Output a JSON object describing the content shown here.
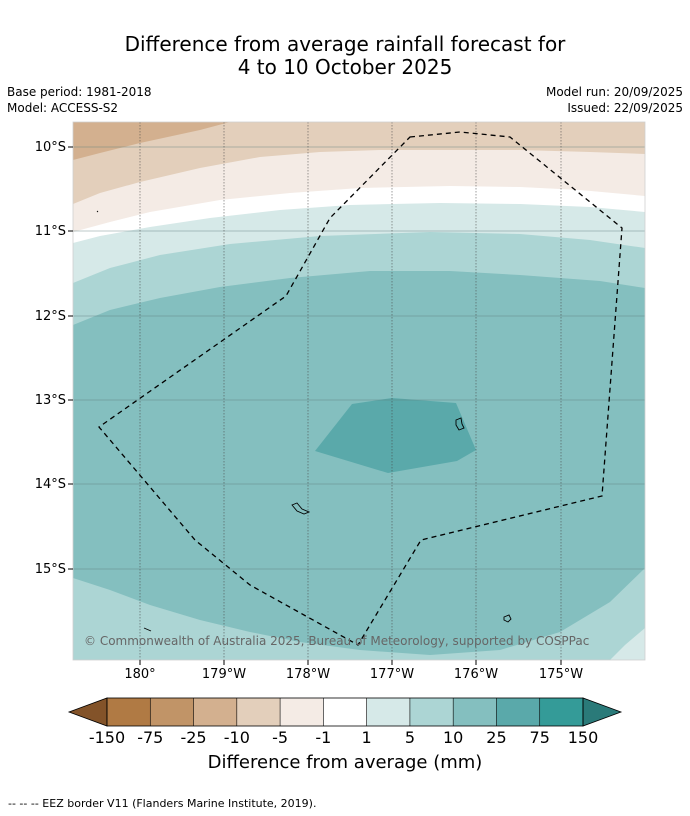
{
  "title_line1": "Difference from average rainfall forecast for",
  "title_line2": "4 to 10 October 2025",
  "base_period": "Base period: 1981-2018",
  "model": "Model: ACCESS-S2",
  "model_run": "Model run: 20/09/2025",
  "issued": "Issued: 22/09/2025",
  "map": {
    "lat_labels": [
      "10°S",
      "11°S",
      "12°S",
      "13°S",
      "14°S",
      "15°S"
    ],
    "lon_labels": [
      "180°",
      "179°W",
      "178°W",
      "177°W",
      "176°W",
      "175°W"
    ],
    "copyright": "© Commonwealth of Australia 2025, Bureau of Meteorology, supported by COSPPac",
    "border_legend": "--  --  -- EEZ border V11 (Flanders Marine Institute, 2019)."
  },
  "colorbar": {
    "title": "Difference from average (mm)",
    "tick_labels": [
      "-150",
      "-75",
      "-25",
      "-10",
      "-5",
      "-1",
      "1",
      "5",
      "10",
      "25",
      "75",
      "150"
    ],
    "colors": [
      "#835329",
      "#b07a44",
      "#c19467",
      "#d3b08f",
      "#e3cfbb",
      "#f4ebe5",
      "#ffffff",
      "#d6e9e8",
      "#acd5d4",
      "#84bfbf",
      "#5aa9aa",
      "#349b98",
      "#2a7a79"
    ]
  }
}
